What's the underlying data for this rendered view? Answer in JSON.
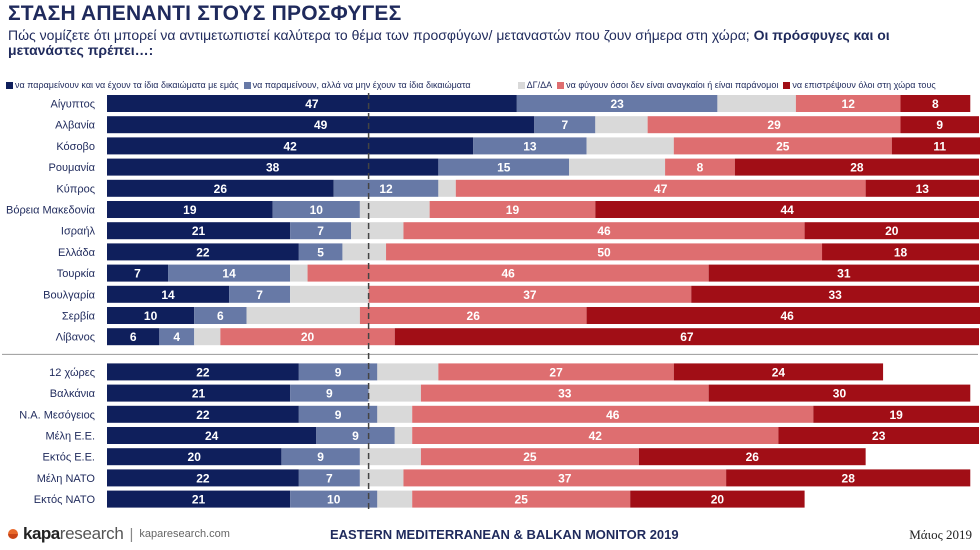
{
  "header": {
    "title": "ΣΤΑΣΗ ΑΠΕΝΑΝΤΙ ΣΤΟΥΣ ΠΡΟΣΦΥΓΕΣ",
    "subtitle_plain": "Πώς νομίζετε ότι μπορεί να αντιμετωπιστεί καλύτερα το θέμα των προσφύγων/ μεταναστών που ζουν σήμερα στη χώρα; ",
    "subtitle_bold": "Οι πρόσφυγες και οι μετανάστες πρέπει…:"
  },
  "footer": {
    "brand_strong": "kapa",
    "brand_light": "research",
    "separator": "|",
    "url": "kaparesearch.com",
    "center": "EASTERN MEDITERRANEAN & BALKAN MONITOR 2019",
    "date": "Μάιος 2019"
  },
  "chart_data": {
    "type": "bar",
    "orientation": "horizontal",
    "stacked": true,
    "legend_position": "top",
    "reference_line": "dashed vertical line at the 50% cumulative point",
    "series": [
      {
        "name": "να παραμείνουν και να έχουν τα ίδια δικαιώματα με εμάς",
        "color": "#0f1f5c",
        "label_color": "#ffffff"
      },
      {
        "name": "να παραμείνουν, αλλά να μην έχουν τα ίδια δικαιώματα",
        "color": "#6779a6",
        "label_color": "#ffffff"
      },
      {
        "name": "ΔΓ/ΔΑ",
        "color": "#d9d9d9",
        "label_color": "#ffffff"
      },
      {
        "name": "να φύγουν όσοι δεν είναι αναγκαίοι ή είναι παράνομοι",
        "color": "#de6e70",
        "label_color": "#ffffff"
      },
      {
        "name": "να επιστρέψουν όλοι στη χώρα τους",
        "color": "#a10e16",
        "label_color": "#ffffff"
      }
    ],
    "groups": [
      {
        "rows": [
          {
            "label": "Αίγυπτος",
            "values": [
              47,
              23,
              9,
              12,
              8
            ]
          },
          {
            "label": "Αλβανία",
            "values": [
              49,
              7,
              6,
              29,
              9
            ]
          },
          {
            "label": "Κόσοβο",
            "values": [
              42,
              13,
              10,
              25,
              11
            ]
          },
          {
            "label": "Ρουμανία",
            "values": [
              38,
              15,
              11,
              8,
              28
            ]
          },
          {
            "label": "Κύπρος",
            "values": [
              26,
              12,
              2,
              47,
              13
            ]
          },
          {
            "label": "Βόρεια Μακεδονία",
            "values": [
              19,
              10,
              8,
              19,
              44
            ]
          },
          {
            "label": "Ισραήλ",
            "values": [
              21,
              7,
              6,
              46,
              20
            ]
          },
          {
            "label": "Ελλάδα",
            "values": [
              22,
              5,
              5,
              50,
              18
            ]
          },
          {
            "label": "Τουρκία",
            "values": [
              7,
              14,
              2,
              46,
              31
            ]
          },
          {
            "label": "Βουλγαρία",
            "values": [
              14,
              7,
              9,
              37,
              33
            ]
          },
          {
            "label": "Σερβία",
            "values": [
              10,
              6,
              13,
              26,
              46
            ]
          },
          {
            "label": "Λίβανος",
            "values": [
              6,
              4,
              3,
              20,
              67
            ]
          }
        ]
      },
      {
        "rows": [
          {
            "label": "12 χώρες",
            "values": [
              22,
              9,
              7,
              27,
              24
            ]
          },
          {
            "label": "Βαλκάνια",
            "values": [
              21,
              9,
              6,
              33,
              30
            ]
          },
          {
            "label": "Ν.Α. Μεσόγειος",
            "values": [
              22,
              9,
              4,
              46,
              19
            ]
          },
          {
            "label": "Μέλη Ε.Ε.",
            "values": [
              24,
              9,
              2,
              42,
              23
            ]
          },
          {
            "label": "Εκτός Ε.Ε.",
            "values": [
              20,
              9,
              7,
              25,
              26
            ]
          },
          {
            "label": "Μέλη ΝΑΤΟ",
            "values": [
              22,
              7,
              5,
              37,
              28
            ]
          },
          {
            "label": "Εκτός ΝΑΤΟ",
            "values": [
              21,
              10,
              4,
              25,
              20
            ]
          }
        ]
      }
    ]
  }
}
